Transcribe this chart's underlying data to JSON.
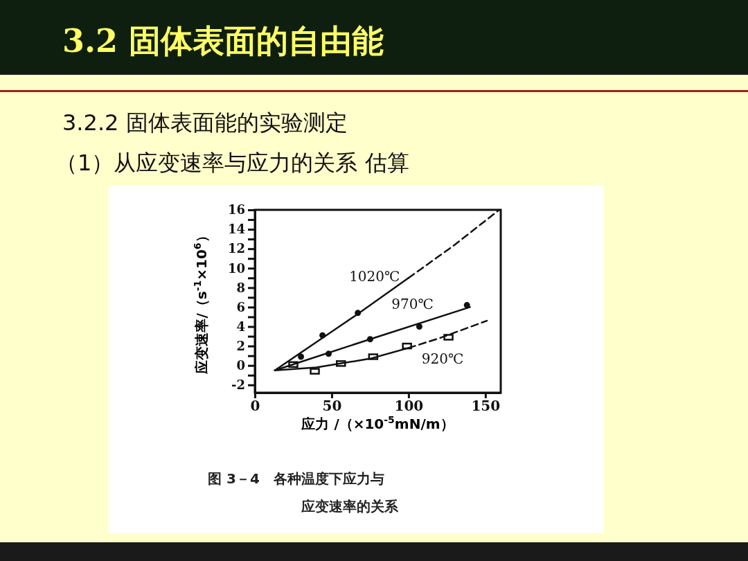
{
  "chart_data": {
    "type": "scatter",
    "title": "3.2 固体表面的自由能",
    "subtitle": "3.2.2 固体表面能的实验测定",
    "xlabel": "应力 /（×10$^{-5}$mN/m）",
    "ylabel": "应变速率/（s$^{-1}$×10$^{6}$）",
    "xlim": [
      0,
      160
    ],
    "xticks": [
      0,
      50,
      100,
      150
    ],
    "ylim": [
      -2.8,
      16
    ],
    "yticks": [
      -2,
      {
        "value": -1,
        "label": null
      },
      0,
      {
        "value": 1,
        "label": null
      },
      2,
      {
        "value": 3,
        "label": null
      },
      4,
      {
        "value": 5,
        "label": null
      },
      6,
      {
        "value": 7,
        "label": null
      },
      8,
      {
        "value": 9,
        "label": null
      },
      10,
      {
        "value": 11,
        "label": null
      },
      12,
      {
        "value": 13,
        "label": null
      },
      14,
      {
        "value": 15,
        "label": null
      },
      16
    ],
    "grid": false,
    "series": [
      {
        "marker": "circle",
        "color": "#111111",
        "x": [
          44,
          67
        ],
        "values": [
          3.1,
          5.4
        ]
      },
      {
        "marker": "circle",
        "color": "#111111",
        "x": [
          30,
          48,
          75,
          107,
          138
        ],
        "values": [
          0.9,
          1.2,
          2.7,
          4.0,
          6.2
        ]
      },
      {
        "marker": "square",
        "color": "#111111",
        "x": [
          25,
          39,
          56,
          77,
          99,
          126
        ],
        "values": [
          0.1,
          -0.6,
          0.2,
          0.9,
          2.0,
          2.9
        ]
      },
      {
        "type": "line",
        "line_style": "solid",
        "color": "#111111",
        "x": [
          13,
          40,
          67,
          100
        ],
        "values": [
          -0.5,
          2.4,
          5.3,
          9.0
        ]
      },
      {
        "type": "line",
        "line_style": "dashed",
        "name": "1020℃",
        "color": "#111111",
        "x": [
          100,
          130,
          159
        ],
        "values": [
          9.0,
          12.4,
          16
        ]
      },
      {
        "type": "line",
        "line_style": "solid",
        "name": "970℃",
        "color": "#111111",
        "x": [
          13,
          75,
          140
        ],
        "values": [
          -0.5,
          2.7,
          6.0
        ]
      },
      {
        "type": "line",
        "line_style": "solid",
        "color": "#111111",
        "x": [
          13,
          40,
          75,
          100
        ],
        "values": [
          -0.5,
          -0.2,
          0.7,
          1.8
        ]
      },
      {
        "type": "line",
        "line_style": "dashed",
        "name": "920℃",
        "color": "#111111",
        "x": [
          100,
          120,
          151
        ],
        "values": [
          1.8,
          2.8,
          4.6
        ]
      }
    ],
    "annotations": [
      "（1）从应变速率与应力的关系 估算",
      "图 3－4　各种温度下应力与应变速率的关系"
    ]
  }
}
